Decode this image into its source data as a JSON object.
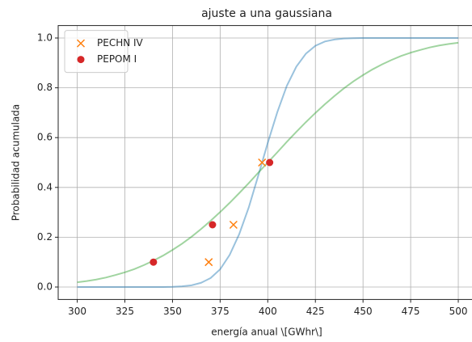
{
  "chart_data": {
    "type": "line",
    "title": "ajuste a una gaussiana",
    "xlabel": "energía anual \\[GWhr\\]",
    "ylabel": "Probabilidad acumulada",
    "xlim": [
      290,
      510
    ],
    "ylim": [
      -0.05,
      1.05
    ],
    "xticks": [
      300,
      325,
      350,
      375,
      400,
      425,
      450,
      475,
      500
    ],
    "yticks": [
      {
        "value": 0,
        "label": "0.0"
      },
      {
        "value": 0.2,
        "label": "0.2"
      },
      {
        "value": 0.4,
        "label": "0.4"
      },
      {
        "value": 0.6,
        "label": "0.6"
      },
      {
        "value": 0.8,
        "label": "0.8"
      },
      {
        "value": 1,
        "label": "1.0"
      }
    ],
    "grid": true,
    "legend": "upper left",
    "series": [
      {
        "type": "line",
        "color": "#1f77b4",
        "alpha": 0.45,
        "x": [
          300,
          305,
          310,
          315,
          320,
          325,
          330,
          335,
          340,
          345,
          350,
          355,
          360,
          365,
          370,
          375,
          380,
          385,
          390,
          395,
          400,
          405,
          410,
          415,
          420,
          425,
          430,
          435,
          440,
          445,
          450,
          455,
          460,
          465,
          470,
          475,
          480,
          485,
          490,
          495,
          500
        ],
        "values": [
          0,
          0,
          0,
          0,
          0,
          0,
          0,
          0,
          0,
          0,
          0.001,
          0.003,
          0.007,
          0.017,
          0.036,
          0.071,
          0.129,
          0.212,
          0.319,
          0.447,
          0.579,
          0.702,
          0.808,
          0.885,
          0.937,
          0.969,
          0.986,
          0.994,
          0.998,
          0.999,
          1,
          1,
          1,
          1,
          1,
          1,
          1,
          1,
          1,
          1,
          1
        ]
      },
      {
        "type": "line",
        "color": "#2ca02c",
        "alpha": 0.45,
        "x": [
          300,
          305,
          310,
          315,
          320,
          325,
          330,
          335,
          340,
          345,
          350,
          355,
          360,
          365,
          370,
          375,
          380,
          385,
          390,
          395,
          400,
          405,
          410,
          415,
          420,
          425,
          430,
          435,
          440,
          445,
          450,
          455,
          460,
          465,
          470,
          475,
          480,
          485,
          490,
          495,
          500
        ],
        "values": [
          0.019,
          0.024,
          0.03,
          0.038,
          0.048,
          0.059,
          0.072,
          0.088,
          0.106,
          0.126,
          0.149,
          0.174,
          0.202,
          0.233,
          0.266,
          0.301,
          0.338,
          0.377,
          0.417,
          0.459,
          0.5,
          0.541,
          0.583,
          0.623,
          0.662,
          0.699,
          0.734,
          0.767,
          0.798,
          0.826,
          0.851,
          0.874,
          0.894,
          0.912,
          0.928,
          0.941,
          0.952,
          0.962,
          0.97,
          0.976,
          0.981
        ]
      },
      {
        "type": "scatter",
        "name": "PECHN IV",
        "marker": "x",
        "color": "#ff7f0e",
        "x": [
          369,
          382,
          397
        ],
        "values": [
          0.1,
          0.25,
          0.5
        ]
      },
      {
        "type": "scatter",
        "name": "PEPOM I",
        "marker": "o",
        "color": "#d62728",
        "x": [
          340,
          371,
          401
        ],
        "values": [
          0.1,
          0.25,
          0.5
        ]
      }
    ]
  }
}
